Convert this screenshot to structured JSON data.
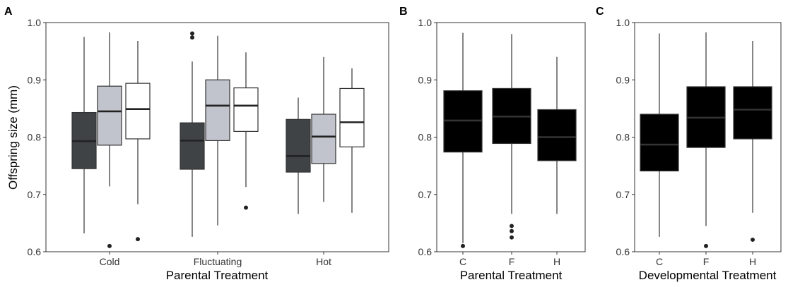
{
  "chart_data": [
    {
      "panel": "A",
      "type": "box",
      "xlabel": "Parental Treatment",
      "ylabel": "Offspring size (mm)",
      "ylim": [
        0.6,
        1.0
      ],
      "yticks": [
        "0.6",
        "0.7",
        "0.8",
        "0.9",
        "1.0"
      ],
      "categories": [
        "Cold",
        "Fluctuating",
        "Hot"
      ],
      "grid": false,
      "box_colors": [
        "#3f4346",
        "#c2c4cd",
        "#ffffff"
      ],
      "boxes": [
        {
          "category": "Cold",
          "fill": "#3f4346",
          "median_color": "#222222",
          "whisker_low": 0.632,
          "q1": 0.745,
          "median": 0.793,
          "q3": 0.843,
          "whisker_high": 0.975,
          "outliers": []
        },
        {
          "category": "Cold",
          "fill": "#c2c4cd",
          "median_color": "#222222",
          "whisker_low": 0.714,
          "q1": 0.786,
          "median": 0.845,
          "q3": 0.889,
          "whisker_high": 0.983,
          "outliers": [
            0.61
          ]
        },
        {
          "category": "Cold",
          "fill": "#ffffff",
          "median_color": "#222222",
          "whisker_low": 0.683,
          "q1": 0.797,
          "median": 0.849,
          "q3": 0.894,
          "whisker_high": 0.968,
          "outliers": [
            0.622
          ]
        },
        {
          "category": "Fluctuating",
          "fill": "#3f4346",
          "median_color": "#222222",
          "whisker_low": 0.626,
          "q1": 0.744,
          "median": 0.794,
          "q3": 0.825,
          "whisker_high": 0.932,
          "outliers": [
            0.974,
            0.981
          ]
        },
        {
          "category": "Fluctuating",
          "fill": "#c2c4cd",
          "median_color": "#222222",
          "whisker_low": 0.646,
          "q1": 0.794,
          "median": 0.855,
          "q3": 0.9,
          "whisker_high": 0.977,
          "outliers": []
        },
        {
          "category": "Fluctuating",
          "fill": "#ffffff",
          "median_color": "#222222",
          "whisker_low": 0.713,
          "q1": 0.81,
          "median": 0.855,
          "q3": 0.886,
          "whisker_high": 0.948,
          "outliers": [
            0.677
          ]
        },
        {
          "category": "Hot",
          "fill": "#3f4346",
          "median_color": "#222222",
          "whisker_low": 0.666,
          "q1": 0.739,
          "median": 0.767,
          "q3": 0.831,
          "whisker_high": 0.869,
          "outliers": []
        },
        {
          "category": "Hot",
          "fill": "#c2c4cd",
          "median_color": "#222222",
          "whisker_low": 0.687,
          "q1": 0.754,
          "median": 0.801,
          "q3": 0.84,
          "whisker_high": 0.94,
          "outliers": []
        },
        {
          "category": "Hot",
          "fill": "#ffffff",
          "median_color": "#222222",
          "whisker_low": 0.668,
          "q1": 0.783,
          "median": 0.826,
          "q3": 0.885,
          "whisker_high": 0.92,
          "outliers": []
        }
      ]
    },
    {
      "panel": "B",
      "type": "box",
      "xlabel": "Parental Treatment",
      "ylabel": "",
      "ylim": [
        0.6,
        1.0
      ],
      "yticks": [
        "0.6",
        "0.7",
        "0.8",
        "0.9",
        "1.0"
      ],
      "categories": [
        "C",
        "F",
        "H"
      ],
      "grid": false,
      "boxes": [
        {
          "category": "C",
          "fill": "#000000",
          "median_color": "#333333",
          "whisker_low": 0.615,
          "q1": 0.774,
          "median": 0.829,
          "q3": 0.881,
          "whisker_high": 0.982,
          "outliers": [
            0.61
          ]
        },
        {
          "category": "F",
          "fill": "#000000",
          "median_color": "#333333",
          "whisker_low": 0.666,
          "q1": 0.789,
          "median": 0.836,
          "q3": 0.885,
          "whisker_high": 0.98,
          "outliers": [
            0.625,
            0.636,
            0.645
          ]
        },
        {
          "category": "H",
          "fill": "#000000",
          "median_color": "#333333",
          "whisker_low": 0.666,
          "q1": 0.759,
          "median": 0.8,
          "q3": 0.848,
          "whisker_high": 0.94,
          "outliers": []
        }
      ]
    },
    {
      "panel": "C",
      "type": "box",
      "xlabel": "Developmental Treatment",
      "ylabel": "",
      "ylim": [
        0.6,
        1.0
      ],
      "yticks": [
        "0.6",
        "0.7",
        "0.8",
        "0.9",
        "1.0"
      ],
      "categories": [
        "C",
        "F",
        "H"
      ],
      "grid": false,
      "boxes": [
        {
          "category": "C",
          "fill": "#000000",
          "median_color": "#333333",
          "whisker_low": 0.626,
          "q1": 0.741,
          "median": 0.787,
          "q3": 0.84,
          "whisker_high": 0.981,
          "outliers": []
        },
        {
          "category": "F",
          "fill": "#000000",
          "median_color": "#333333",
          "whisker_low": 0.645,
          "q1": 0.782,
          "median": 0.834,
          "q3": 0.888,
          "whisker_high": 0.983,
          "outliers": [
            0.61
          ]
        },
        {
          "category": "H",
          "fill": "#000000",
          "median_color": "#333333",
          "whisker_low": 0.668,
          "q1": 0.797,
          "median": 0.848,
          "q3": 0.888,
          "whisker_high": 0.968,
          "outliers": [
            0.621
          ]
        }
      ]
    }
  ]
}
